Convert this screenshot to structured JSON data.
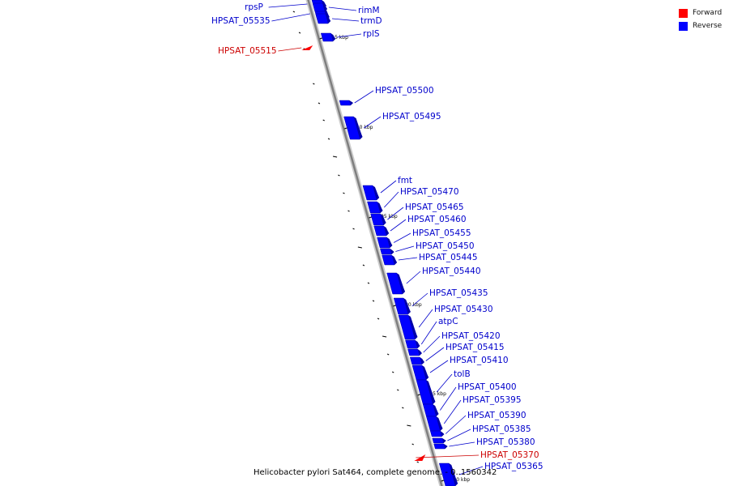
{
  "map": {
    "caption": "Helicobacter pylori Sat464, complete genome. - 0..1560342",
    "backbone_color": "#7f7f7f",
    "label_color": "#0000cc",
    "forward_label_color": "#cc0000"
  },
  "legend": [
    {
      "label": "Forward",
      "color": "#ff0000"
    },
    {
      "label": "Reverse",
      "color": "#0000ff"
    }
  ],
  "tick_labels": [
    "1115 kbp",
    "1110 kbp",
    "1105 kbp",
    "1100 kbp",
    "1095 kbp",
    "1090 kbp"
  ],
  "genes": [
    {
      "name": "rpsP",
      "strand": "reverse"
    },
    {
      "name": "HPSAT_05535",
      "strand": "reverse"
    },
    {
      "name": "rimM",
      "strand": "reverse"
    },
    {
      "name": "trmD",
      "strand": "reverse"
    },
    {
      "name": "rplS",
      "strand": "reverse"
    },
    {
      "name": "HPSAT_05515",
      "strand": "forward"
    },
    {
      "name": "HPSAT_05500",
      "strand": "reverse"
    },
    {
      "name": "HPSAT_05495",
      "strand": "reverse"
    },
    {
      "name": "fmt",
      "strand": "reverse"
    },
    {
      "name": "HPSAT_05470",
      "strand": "reverse"
    },
    {
      "name": "HPSAT_05465",
      "strand": "reverse"
    },
    {
      "name": "HPSAT_05460",
      "strand": "reverse"
    },
    {
      "name": "HPSAT_05455",
      "strand": "reverse"
    },
    {
      "name": "HPSAT_05450",
      "strand": "reverse"
    },
    {
      "name": "HPSAT_05445",
      "strand": "reverse"
    },
    {
      "name": "HPSAT_05440",
      "strand": "reverse"
    },
    {
      "name": "HPSAT_05435",
      "strand": "reverse"
    },
    {
      "name": "HPSAT_05430",
      "strand": "reverse"
    },
    {
      "name": "atpC",
      "strand": "reverse"
    },
    {
      "name": "HPSAT_05420",
      "strand": "reverse"
    },
    {
      "name": "HPSAT_05415",
      "strand": "reverse"
    },
    {
      "name": "HPSAT_05410",
      "strand": "reverse"
    },
    {
      "name": "tolB",
      "strand": "reverse"
    },
    {
      "name": "HPSAT_05400",
      "strand": "reverse"
    },
    {
      "name": "HPSAT_05395",
      "strand": "reverse"
    },
    {
      "name": "HPSAT_05390",
      "strand": "reverse"
    },
    {
      "name": "HPSAT_05385",
      "strand": "reverse"
    },
    {
      "name": "HPSAT_05380",
      "strand": "reverse"
    },
    {
      "name": "HPSAT_05370",
      "strand": "forward"
    },
    {
      "name": "HPSAT_05365",
      "strand": "reverse"
    }
  ]
}
